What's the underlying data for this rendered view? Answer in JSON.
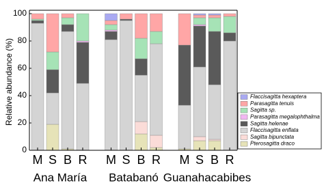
{
  "chart_data": {
    "type": "stacked-bar",
    "y_label": "Relative abundance (%)",
    "categories": [
      "M",
      "S",
      "B",
      "R",
      "M",
      "S",
      "B",
      "R",
      "M",
      "S",
      "B",
      "R"
    ],
    "groups": [
      "Ana María",
      "Batabanó",
      "Guanahacabibes"
    ],
    "ylim": [
      0,
      100
    ],
    "yticks": [
      0,
      20,
      40,
      60,
      80,
      100
    ],
    "series": [
      {
        "name": "Pterosagitta draco",
        "color": "#e6e3b8",
        "values": [
          0,
          19,
          1,
          0,
          0,
          0,
          12,
          2,
          1,
          7,
          7,
          0
        ]
      },
      {
        "name": "Sagitta bipunctata",
        "color": "#fbdcd8",
        "values": [
          0,
          0,
          0,
          0,
          0,
          0,
          9,
          9,
          0,
          3,
          1,
          0
        ]
      },
      {
        "name": "Flaccisagitta enflata",
        "color": "#d4d4d4",
        "values": [
          93,
          23,
          86,
          49,
          81,
          95,
          34,
          67,
          32,
          51,
          40,
          80
        ]
      },
      {
        "name": "Sagitta helenae",
        "color": "#5a5a5a",
        "values": [
          2,
          17,
          5,
          30,
          6,
          1,
          12,
          0,
          44,
          30,
          39,
          6
        ]
      },
      {
        "name": "Parasagitta megalophthalma",
        "color": "#f2b8f2",
        "values": [
          0,
          0,
          0,
          1,
          1,
          0,
          0,
          0,
          0,
          1,
          0,
          0
        ]
      },
      {
        "name": "Sagitta sp.",
        "color": "#a6e3b6",
        "values": [
          1,
          13,
          5,
          20,
          4,
          0,
          15,
          9,
          0,
          5,
          10,
          12
        ]
      },
      {
        "name": "Parasagitta tenuis",
        "color": "#ffa6a6",
        "values": [
          4,
          28,
          3,
          0,
          3,
          4,
          18,
          13,
          23,
          2,
          2,
          2
        ]
      },
      {
        "name": "Flaccisagitta hexaptera",
        "color": "#aaaaf2",
        "values": [
          0,
          0,
          0,
          0,
          5,
          0,
          0,
          0,
          0,
          1,
          1,
          0
        ]
      }
    ]
  }
}
